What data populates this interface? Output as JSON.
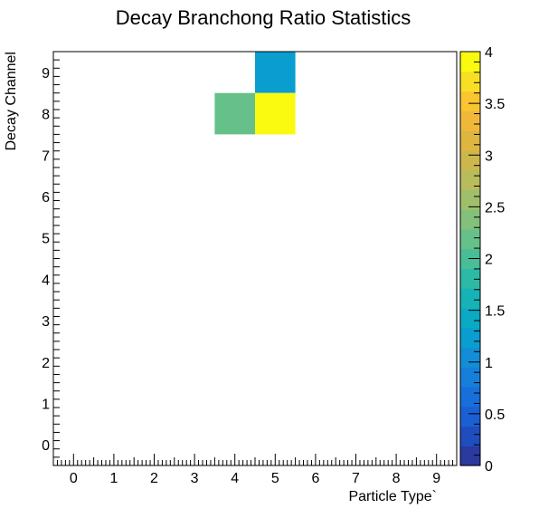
{
  "chart_data": {
    "type": "heatmap",
    "title": "Decay Branchong Ratio Statistics",
    "xlabel": "Particle Type`",
    "ylabel": "Decay Channel",
    "xlim": [
      -0.5,
      9.5
    ],
    "ylim": [
      -0.5,
      9.5
    ],
    "x_ticks": [
      "0",
      "1",
      "2",
      "3",
      "4",
      "5",
      "6",
      "7",
      "8",
      "9"
    ],
    "y_ticks": [
      "0",
      "1",
      "2",
      "3",
      "4",
      "5",
      "6",
      "7",
      "8",
      "9"
    ],
    "cells": [
      {
        "x": 5,
        "y": 9,
        "value": 1.3
      },
      {
        "x": 4,
        "y": 8,
        "value": 2.1
      },
      {
        "x": 5,
        "y": 8,
        "value": 4
      }
    ],
    "colorbar": {
      "min": 0,
      "max": 4,
      "tick_values": [
        0,
        0.5,
        1,
        1.5,
        2,
        2.5,
        3,
        3.5,
        4
      ],
      "tick_labels": [
        "0",
        "0.5",
        "1",
        "1.5",
        "2",
        "2.5",
        "3",
        "3.5",
        "4"
      ],
      "colors": [
        "#2a3a9e",
        "#1f4dbe",
        "#1a5fd3",
        "#176fdb",
        "#167fda",
        "#128ed6",
        "#0a9ed0",
        "#0aaac5",
        "#16b2b5",
        "#2cb9a6",
        "#49bd96",
        "#66c089",
        "#83c07a",
        "#9fbf6a",
        "#b9bc5b",
        "#cdb74d",
        "#dfb542",
        "#f0b83b",
        "#f9c631",
        "#f8df25",
        "#f9fa10"
      ]
    }
  }
}
